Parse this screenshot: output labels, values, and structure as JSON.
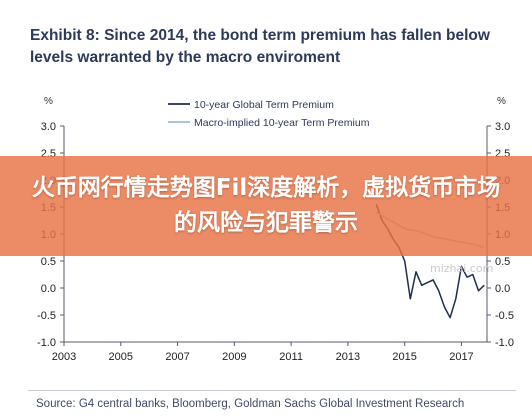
{
  "header": {
    "title": "Exhibit 8: Since 2014, the bond term premium has fallen below levels warranted by the macro enviroment"
  },
  "banner": {
    "text": "火币网行情走势图Fil深度解析，虚拟货币市场的风险与犯罪警示"
  },
  "watermark": {
    "text": "mizhai.com"
  },
  "footer": {
    "source": "Source: G4 central banks, Bloomberg, Goldman Sachs Global Investment Research"
  },
  "chart_data": {
    "type": "line",
    "title": "",
    "ylabel_left": "%",
    "ylabel_right": "%",
    "xlim": [
      2003,
      2017.9
    ],
    "ylim": [
      -1.0,
      3.0
    ],
    "yticks": [
      -1.0,
      -0.5,
      0.0,
      0.5,
      1.0,
      1.5,
      2.0,
      2.5,
      3.0
    ],
    "yticks_right": [
      "-1.0",
      "-0.5",
      "0.0",
      "0.5",
      "1.0",
      "1.5",
      "2.0",
      "2.5",
      "3.0"
    ],
    "xticks": [
      2003,
      2005,
      2007,
      2009,
      2011,
      2013,
      2015,
      2017
    ],
    "legend_position": "top",
    "grid": false,
    "colors": {
      "series1": "#1e2d4a",
      "series2": "#9fc1cc"
    },
    "series": [
      {
        "name": "10-year Global Term Premium",
        "x": [
          2014.0,
          2014.2,
          2014.4,
          2014.6,
          2014.8,
          2015.0,
          2015.2,
          2015.4,
          2015.6,
          2015.8,
          2016.0,
          2016.2,
          2016.4,
          2016.6,
          2016.8,
          2017.0,
          2017.2,
          2017.4,
          2017.6,
          2017.8
        ],
        "values": [
          1.55,
          1.25,
          1.1,
          0.9,
          0.75,
          0.5,
          -0.2,
          0.3,
          0.05,
          0.1,
          0.15,
          -0.05,
          -0.35,
          -0.55,
          -0.2,
          0.4,
          0.2,
          0.25,
          -0.05,
          0.05
        ]
      },
      {
        "name": "Macro-implied 10-year Term Premium",
        "x": [
          2014.0,
          2014.5,
          2015.0,
          2015.5,
          2016.0,
          2016.5,
          2017.0,
          2017.5,
          2017.8
        ],
        "values": [
          1.4,
          1.25,
          1.1,
          1.05,
          0.95,
          0.9,
          0.85,
          0.8,
          0.75
        ]
      }
    ]
  }
}
